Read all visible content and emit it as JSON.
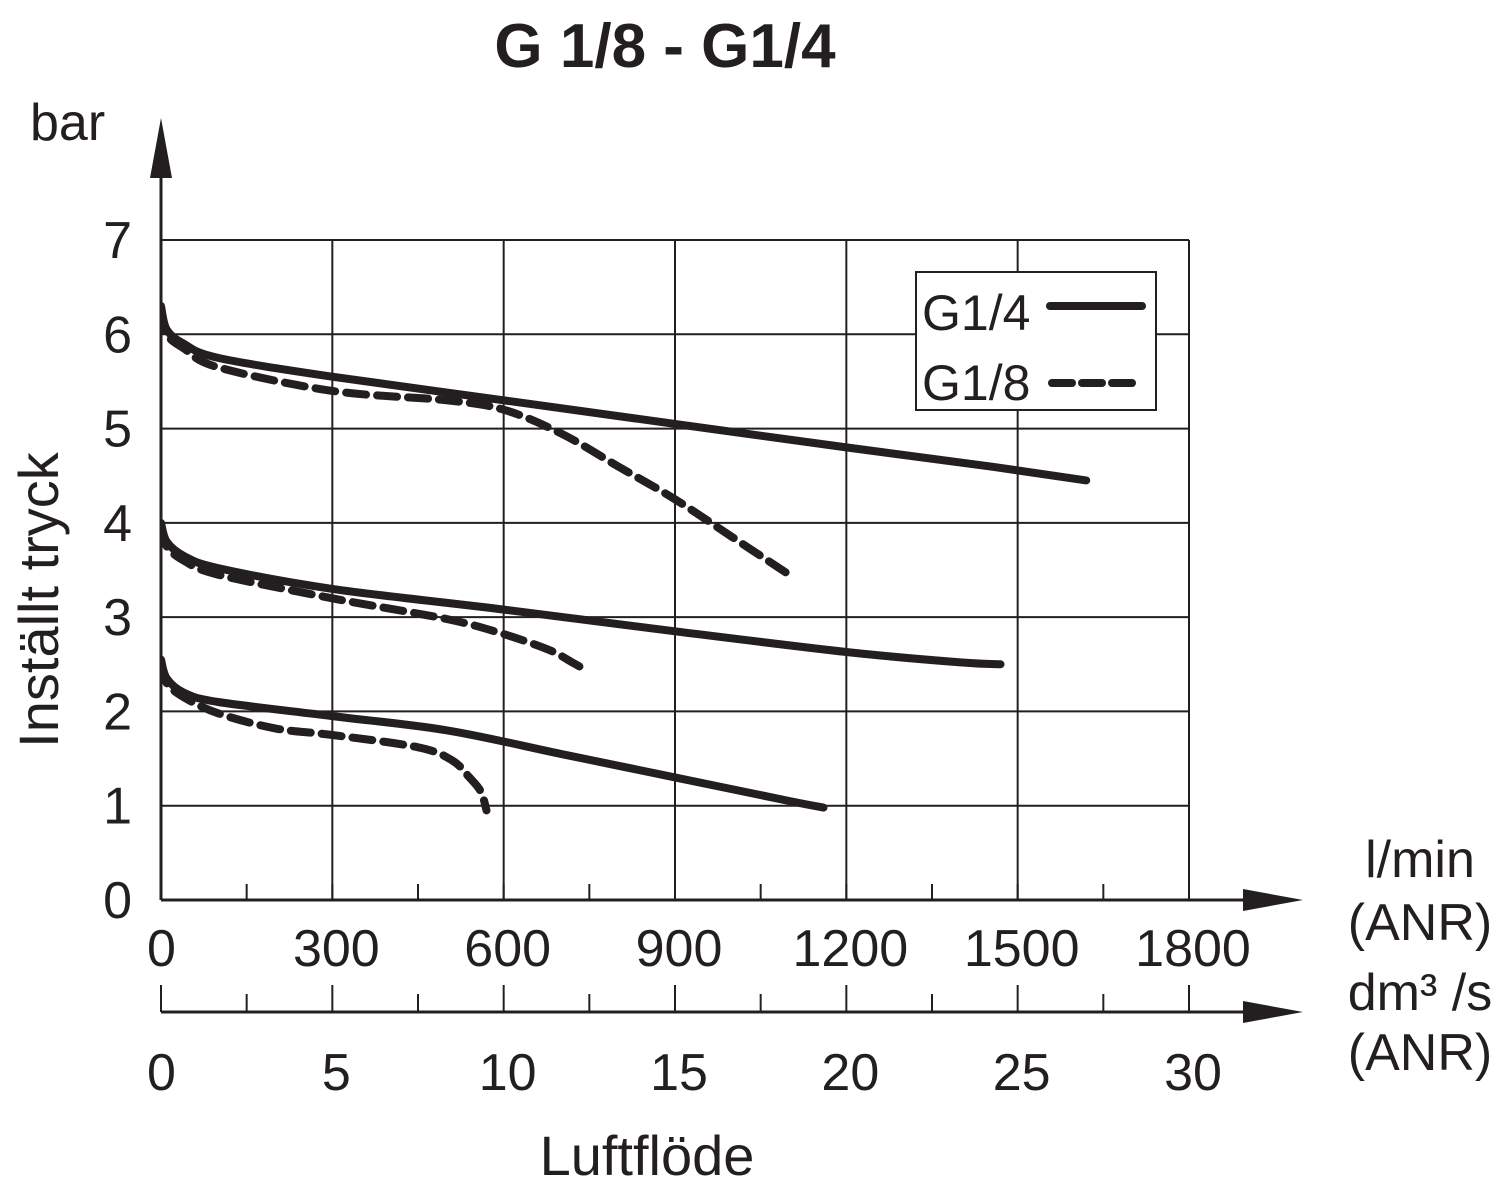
{
  "chart_data": {
    "type": "line",
    "title": "G 1/8 - G1/4",
    "ylabel": "Inställt tryck",
    "yunit": "bar",
    "xlabel": "Luftflöde",
    "ylim": [
      0,
      7
    ],
    "yticks": [
      "0",
      "1",
      "2",
      "3",
      "4",
      "5",
      "6",
      "7"
    ],
    "x_axis_primary": {
      "unit_line1": "l/min",
      "unit_line2": "(ANR)",
      "range": [
        0,
        1800
      ],
      "ticks": [
        "0",
        "300",
        "600",
        "900",
        "1200",
        "1500",
        "1800"
      ]
    },
    "x_axis_secondary": {
      "unit_line1": "dm³ /s",
      "unit_line2": "(ANR)",
      "range": [
        0,
        30
      ],
      "ticks": [
        "0",
        "5",
        "10",
        "15",
        "20",
        "25",
        "30"
      ]
    },
    "grid": true,
    "legend": {
      "position": "top-right",
      "entries": [
        {
          "label": "G1/4",
          "style": "solid"
        },
        {
          "label": "G1/8",
          "style": "dashed"
        }
      ]
    },
    "series": [
      {
        "name": "G1/4 (6 bar)",
        "style": "solid",
        "points": [
          [
            0,
            6.3
          ],
          [
            10,
            6.05
          ],
          [
            40,
            5.9
          ],
          [
            100,
            5.75
          ],
          [
            300,
            5.55
          ],
          [
            600,
            5.3
          ],
          [
            900,
            5.05
          ],
          [
            1200,
            4.8
          ],
          [
            1450,
            4.6
          ],
          [
            1620,
            4.45
          ]
        ]
      },
      {
        "name": "G1/8 (6 bar)",
        "style": "dashed",
        "points": [
          [
            0,
            6.25
          ],
          [
            10,
            6.0
          ],
          [
            40,
            5.85
          ],
          [
            100,
            5.65
          ],
          [
            300,
            5.4
          ],
          [
            500,
            5.3
          ],
          [
            600,
            5.2
          ],
          [
            700,
            4.95
          ],
          [
            800,
            4.6
          ],
          [
            900,
            4.25
          ],
          [
            1000,
            3.85
          ],
          [
            1100,
            3.45
          ]
        ]
      },
      {
        "name": "G1/4 (4 bar)",
        "style": "solid",
        "points": [
          [
            0,
            4.0
          ],
          [
            10,
            3.8
          ],
          [
            40,
            3.65
          ],
          [
            100,
            3.52
          ],
          [
            300,
            3.3
          ],
          [
            600,
            3.08
          ],
          [
            900,
            2.85
          ],
          [
            1200,
            2.63
          ],
          [
            1400,
            2.52
          ],
          [
            1470,
            2.5
          ]
        ]
      },
      {
        "name": "G1/8 (4 bar)",
        "style": "dashed",
        "points": [
          [
            0,
            3.95
          ],
          [
            10,
            3.75
          ],
          [
            40,
            3.6
          ],
          [
            100,
            3.45
          ],
          [
            300,
            3.2
          ],
          [
            500,
            2.98
          ],
          [
            600,
            2.82
          ],
          [
            680,
            2.65
          ],
          [
            720,
            2.52
          ],
          [
            740,
            2.45
          ]
        ]
      },
      {
        "name": "G1/4 (2 bar)",
        "style": "solid",
        "points": [
          [
            0,
            2.55
          ],
          [
            10,
            2.35
          ],
          [
            40,
            2.2
          ],
          [
            100,
            2.1
          ],
          [
            300,
            1.95
          ],
          [
            500,
            1.8
          ],
          [
            700,
            1.55
          ],
          [
            900,
            1.3
          ],
          [
            1100,
            1.05
          ],
          [
            1160,
            0.98
          ]
        ]
      },
      {
        "name": "G1/8 (2 bar)",
        "style": "dashed",
        "points": [
          [
            0,
            2.5
          ],
          [
            10,
            2.3
          ],
          [
            40,
            2.15
          ],
          [
            100,
            1.98
          ],
          [
            200,
            1.82
          ],
          [
            300,
            1.75
          ],
          [
            450,
            1.62
          ],
          [
            510,
            1.48
          ],
          [
            540,
            1.3
          ],
          [
            560,
            1.15
          ],
          [
            570,
            0.95
          ]
        ]
      }
    ]
  }
}
